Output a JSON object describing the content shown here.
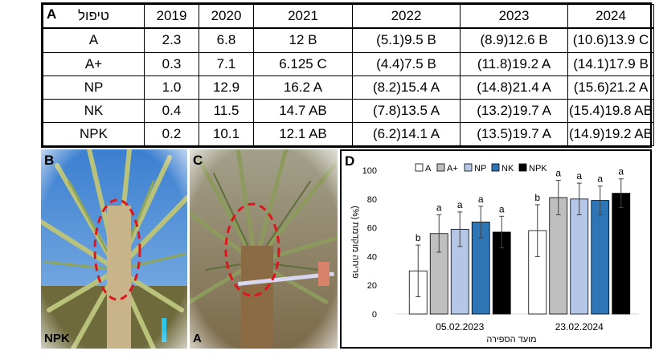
{
  "table": {
    "panel_letter": "A",
    "corner_label": "טיפול",
    "years": [
      "2019",
      "2020",
      "2021",
      "2022",
      "2023",
      "2024"
    ],
    "rows": [
      {
        "treatment": "A",
        "values": [
          "2.3",
          "6.8",
          "12 B",
          "(5.1)9.5 B",
          "(8.9)12.6 B",
          "(10.6)13.9 C"
        ]
      },
      {
        "treatment": "A+",
        "values": [
          "0.3",
          "7.1",
          "6.125 C",
          "(4.4)7.5 B",
          "(11.8)19.2 A",
          "(14.1)17.9 B"
        ]
      },
      {
        "treatment": "NP",
        "values": [
          "1.0",
          "12.9",
          "16.2 A",
          "(8.2)15.4 A",
          "(14.8)21.4 A",
          "(15.6)21.2 A"
        ]
      },
      {
        "treatment": "NK",
        "values": [
          "0.4",
          "11.5",
          "14.7 AB",
          "(7.8)13.5 A",
          "(13.2)19.7 A",
          "(15.4)19.8 AB"
        ]
      },
      {
        "treatment": "NPK",
        "values": [
          "0.2",
          "10.1",
          "12.1 AB",
          "(6.2)14.1 A",
          "(13.5)19.7 A",
          "(14.9)19.2 AB"
        ]
      }
    ]
  },
  "photos": {
    "b": {
      "letter": "B",
      "tag": "NPK"
    },
    "c": {
      "letter": "C",
      "tag": "A"
    }
  },
  "chart_data": {
    "type": "bar",
    "panel_letter": "D",
    "ylabel": "פריחה מוקדמת (%)",
    "xlabel": "מועד הספירה",
    "ylim": [
      0,
      100
    ],
    "yticks": [
      0,
      20,
      40,
      60,
      80,
      100
    ],
    "grid": false,
    "legend_position": "top",
    "categories": [
      "05.02.2023",
      "23.02.2024"
    ],
    "series": [
      {
        "name": "A",
        "color": "#ffffff",
        "values": [
          30,
          58
        ],
        "errors": [
          18,
          18
        ],
        "letters": [
          "b",
          "b"
        ]
      },
      {
        "name": "A+",
        "color": "#bfbfbf",
        "values": [
          56,
          81
        ],
        "errors": [
          13,
          12
        ],
        "letters": [
          "a",
          "a"
        ]
      },
      {
        "name": "NP",
        "color": "#b4c7e7",
        "values": [
          59,
          80
        ],
        "errors": [
          12,
          11
        ],
        "letters": [
          "a",
          "a"
        ]
      },
      {
        "name": "NK",
        "color": "#2e75b6",
        "values": [
          64,
          79
        ],
        "errors": [
          11,
          10
        ],
        "letters": [
          "a",
          "a"
        ]
      },
      {
        "name": "NPK",
        "color": "#000000",
        "values": [
          57,
          84
        ],
        "errors": [
          11,
          10
        ],
        "letters": [
          "a",
          "a"
        ]
      }
    ]
  }
}
